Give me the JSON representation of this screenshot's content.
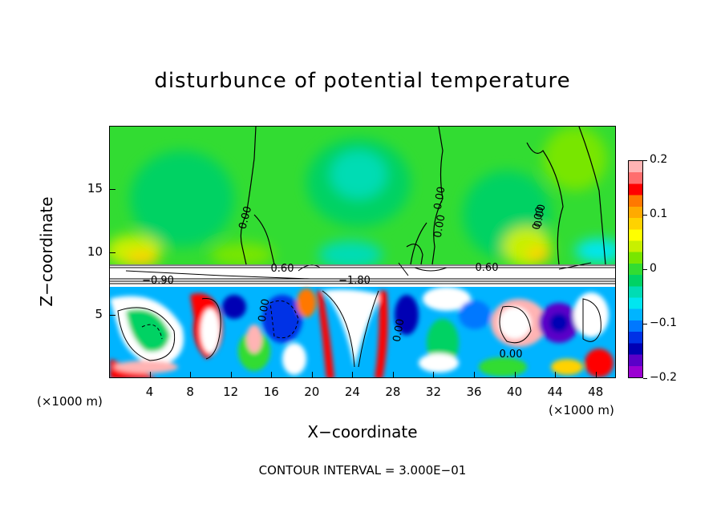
{
  "chart_data": {
    "type": "heatmap",
    "title": "disturbunce of potential temperature",
    "xlabel": "X−coordinate",
    "ylabel": "Z−coordinate",
    "x_unit_left": "(×1000 m)",
    "x_unit_right": "(×1000 m)",
    "xlim": [
      0,
      50
    ],
    "ylim": [
      0,
      20
    ],
    "x_ticks": [
      4,
      8,
      12,
      16,
      20,
      24,
      28,
      32,
      36,
      40,
      44,
      48
    ],
    "y_ticks": [
      5,
      10,
      15
    ],
    "colorbar": {
      "range": [
        -0.2,
        0.2
      ],
      "tick_values": [
        0.2,
        0.1,
        0,
        -0.1,
        -0.2
      ],
      "tick_labels": [
        "0.2",
        "0.1",
        "0",
        "−0.1",
        "−0.2"
      ],
      "colors_top_to_bottom": [
        "#ffb4b4",
        "#ff6e6e",
        "#ff0000",
        "#ff7800",
        "#ffaa00",
        "#ffd200",
        "#ffff00",
        "#c8f000",
        "#78e600",
        "#32dc32",
        "#00d264",
        "#00dcb4",
        "#00e6f0",
        "#00b4ff",
        "#0078ff",
        "#0032e6",
        "#0000b4",
        "#5a00c8",
        "#9b00d2"
      ]
    },
    "contour_labels": [
      "0.00",
      "0.00",
      "0.00",
      "0.00",
      "0.00",
      "0.00",
      "0.60",
      "0.60",
      "−1.80",
      "0.00",
      "0.00",
      "−0.90"
    ],
    "contour_interval_text": "CONTOUR INTERVAL = 3.000E−01"
  }
}
